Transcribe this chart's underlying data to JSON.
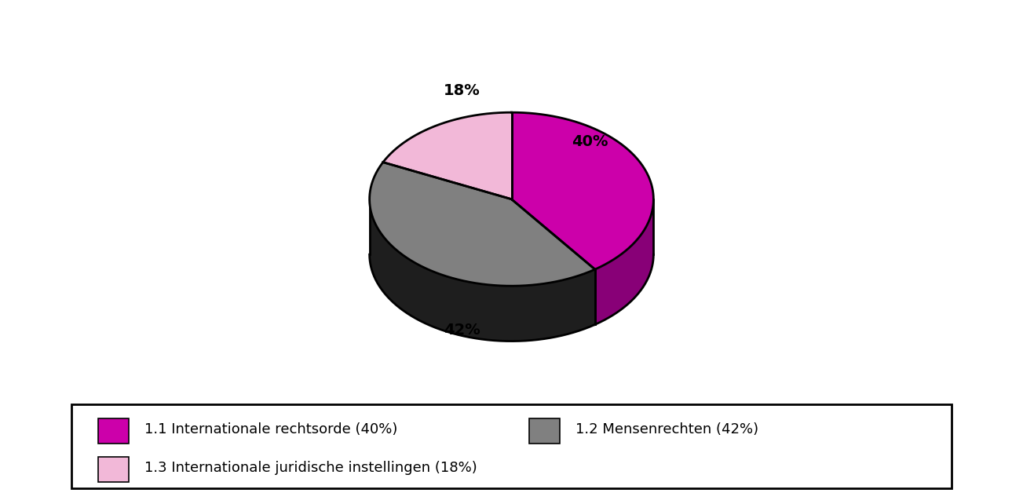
{
  "slices": [
    40,
    42,
    18
  ],
  "labels": [
    "40%",
    "42%",
    "18%"
  ],
  "colors": [
    "#CC00AA",
    "#808080",
    "#F2B8D8"
  ],
  "side_colors": [
    "#880077",
    "#1E1E1E",
    "#C07090"
  ],
  "legend_labels": [
    "1.1 Internationale rechtsorde (40%)",
    "1.2 Mensenrechten (42%)",
    "1.3 Internationale juridische instellingen (18%)"
  ],
  "legend_colors": [
    "#CC00AA",
    "#808080",
    "#F2B8D8"
  ],
  "background_color": "#ffffff",
  "label_fontsize": 14,
  "legend_fontsize": 13
}
